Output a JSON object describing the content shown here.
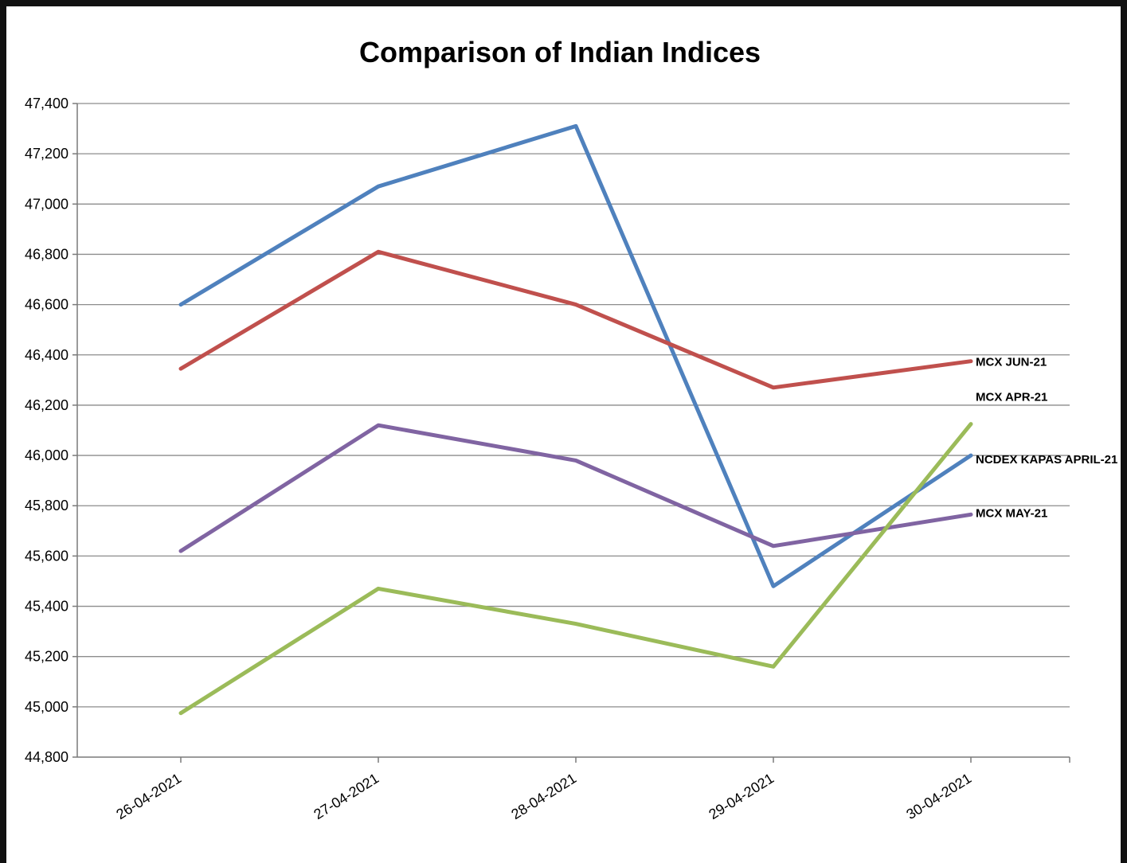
{
  "chart_data": {
    "type": "line",
    "title": "Comparison of Indian Indices",
    "xlabel": "",
    "ylabel": "",
    "categories": [
      "26-04-2021",
      "27-04-2021",
      "28-04-2021",
      "29-04-2021",
      "30-04-2021"
    ],
    "ylim": [
      44800,
      47400
    ],
    "yticks": [
      44800,
      45000,
      45200,
      45400,
      45600,
      45800,
      46000,
      46200,
      46400,
      46600,
      46800,
      47000,
      47200,
      47400
    ],
    "ytick_labels": [
      "44,800",
      "45,000",
      "45,200",
      "45,400",
      "45,600",
      "45,800",
      "46,000",
      "46,200",
      "46,400",
      "46,600",
      "46,800",
      "47,000",
      "47,200",
      "47,400"
    ],
    "grid": true,
    "legend": "none (series labels at line ends)",
    "series": [
      {
        "name": "NCDEX KAPAS APRIL-21",
        "color": "#4F81BD",
        "values": [
          46600,
          47070,
          47310,
          45480,
          46000
        ]
      },
      {
        "name": "MCX JUN-21",
        "color": "#C0504D",
        "values": [
          46345,
          46810,
          46600,
          46270,
          46375
        ]
      },
      {
        "name": "MCX MAY-21",
        "color": "#8064A2",
        "values": [
          45620,
          46120,
          45980,
          45640,
          45765
        ]
      },
      {
        "name": "MCX APR-21",
        "color": "#9BBB59",
        "values": [
          44975,
          45470,
          45330,
          45160,
          46125
        ]
      }
    ]
  }
}
